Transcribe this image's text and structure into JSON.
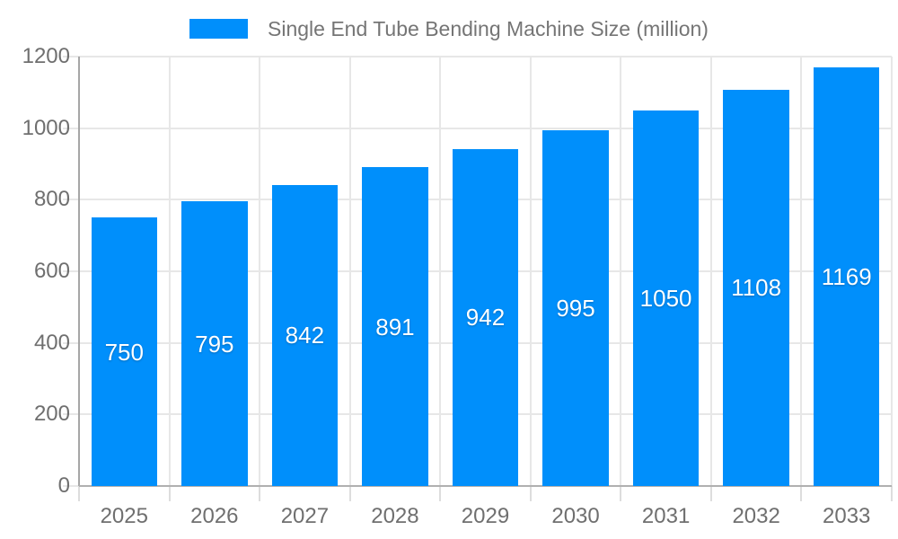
{
  "legend": {
    "label": "Single End Tube Bending Machine Size (million)"
  },
  "chart_data": {
    "type": "bar",
    "title": "Single End Tube Bending Machine Size (million)",
    "categories": [
      "2025",
      "2026",
      "2027",
      "2028",
      "2029",
      "2030",
      "2031",
      "2032",
      "2033"
    ],
    "values": [
      750,
      795,
      842,
      891,
      942,
      995,
      1050,
      1108,
      1169
    ],
    "xlabel": "",
    "ylabel": "",
    "ylim": [
      0,
      1200
    ],
    "yticks": [
      0,
      200,
      400,
      600,
      800,
      1000,
      1200
    ],
    "grid": true,
    "legend_position": "top",
    "bar_color": "#008FFB",
    "axis_label_color": "#6f6f6f",
    "legend_text_color": "#757575",
    "value_label_color": "#ffffff",
    "gridline_color": "#e7e7e7"
  }
}
